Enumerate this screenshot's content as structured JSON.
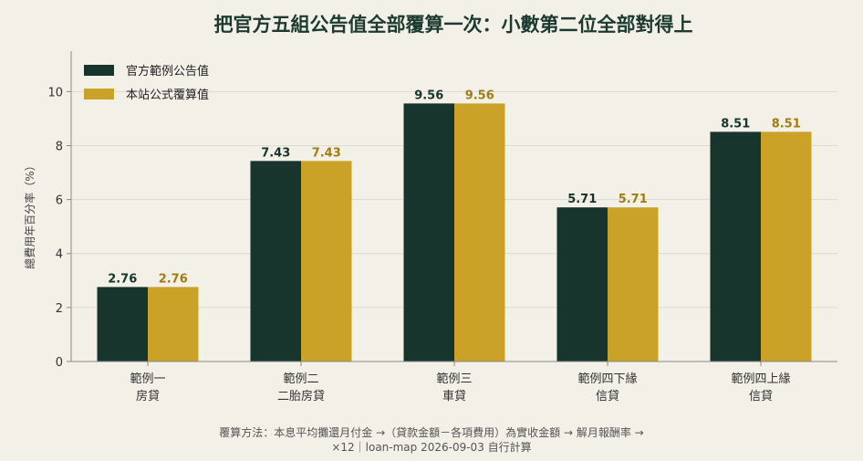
{
  "colors": {
    "background": "#f3f0e8",
    "official": "#17352d",
    "site": "#c9a227",
    "grid": "#dedbd2",
    "axis": "#888888"
  },
  "chart_data": {
    "type": "bar",
    "title": "把官方五組公告值全部覆算一次：小數第二位全部對得上",
    "ylabel": "總費用年百分率（%）",
    "xlabel": "",
    "ylim": [
      0,
      11.5
    ],
    "yticks": [
      0,
      2,
      4,
      6,
      8,
      10
    ],
    "grid": true,
    "legend_position": "top-left",
    "categories": [
      [
        "範例一",
        "房貸"
      ],
      [
        "範例二",
        "二胎房貸"
      ],
      [
        "範例三",
        "車貸"
      ],
      [
        "範例四下緣",
        "信貸"
      ],
      [
        "範例四上緣",
        "信貸"
      ]
    ],
    "series": [
      {
        "name": "官方範例公告值",
        "color": "#17352d",
        "values": [
          2.76,
          7.43,
          9.56,
          5.71,
          8.51
        ]
      },
      {
        "name": "本站公式覆算值",
        "color": "#c9a227",
        "values": [
          2.76,
          7.43,
          9.56,
          5.71,
          8.51
        ]
      }
    ],
    "footnote": [
      "覆算方法：本息平均攤還月付金 →（貸款金額－各項費用）為實收金額 → 解月報酬率 →",
      "×12｜loan-map 2026-09-03 自行計算"
    ]
  }
}
